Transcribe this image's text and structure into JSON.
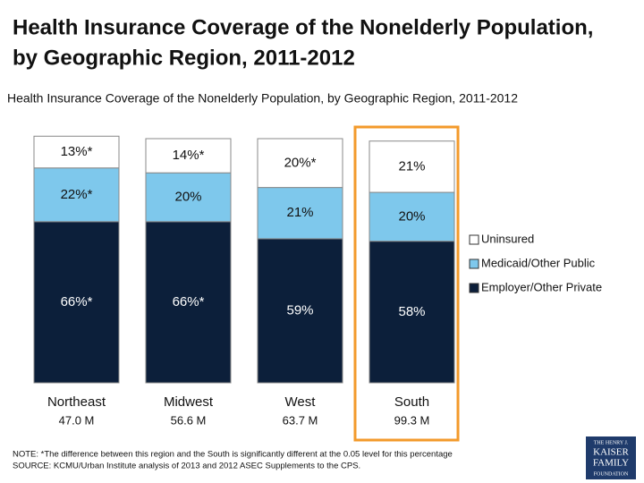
{
  "chart_data": {
    "type": "stacked_bar",
    "title": [
      "Health Insurance Coverage of the Nonelderly  Population,",
      "by Geographic Region, 2011-2012"
    ],
    "subtitle": "Health Insurance Coverage of the Nonelderly  Population, by Geographic Region, 2011-2012",
    "categories": [
      "Northeast",
      "Midwest",
      "West",
      "South"
    ],
    "category_sublabels": [
      "47.0 M",
      "56.6 M",
      "63.7 M",
      "99.3 M"
    ],
    "series": [
      {
        "name": "Employer/Other Private",
        "color": "#0c1f3a",
        "values": [
          66,
          66,
          59,
          58
        ],
        "value_labels": [
          "66%*",
          "66%*",
          "59%",
          "58%"
        ]
      },
      {
        "name": "Medicaid/Other Public",
        "color": "#7ec8ec",
        "values": [
          22,
          20,
          21,
          20
        ],
        "value_labels": [
          "22%*",
          "20%",
          "21%",
          "20%"
        ]
      },
      {
        "name": "Uninsured",
        "color": "#ffffff",
        "values": [
          13,
          14,
          20,
          21
        ],
        "value_labels": [
          "13%*",
          "14%*",
          "20%*",
          "21%"
        ]
      }
    ],
    "ylim": [
      0,
      100
    ],
    "highlight_category": "South",
    "legend": "right",
    "notes": [
      "NOTE: *The difference between this region and the South is significantly different at the 0.05 level for this percentage",
      "SOURCE: KCMU/Urban Institute analysis of 2013 and 2012 ASEC Supplements to the CPS."
    ],
    "logo": [
      "THE HENRY J.",
      "KAISER",
      "FAMILY",
      "FOUNDATION"
    ]
  }
}
